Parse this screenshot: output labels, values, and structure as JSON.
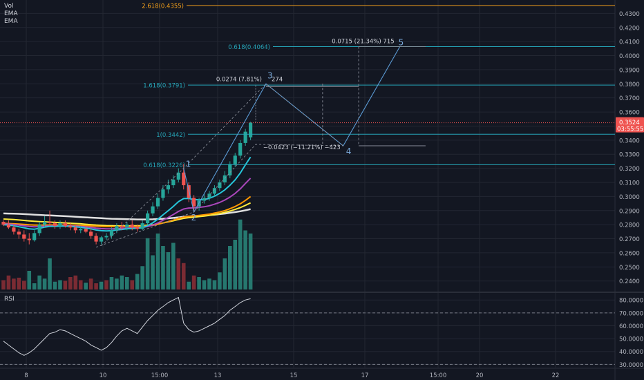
{
  "legend": [
    "Vol",
    "EMA",
    "EMA"
  ],
  "rsi_label": "RSI",
  "colors": {
    "background": "#131722",
    "grid": "#232732",
    "text": "#b2b5be",
    "up": "#26a69a",
    "down": "#ef5350",
    "vol_up": "#26786f",
    "vol_down": "#7b2b33",
    "fib": "#26a6b9",
    "fib_top": "#f7a21b",
    "wave": "#5b9bd5",
    "price_tag": "#ef5350",
    "ema_fast": "#26c6da",
    "ema_mid": "#ab47bc",
    "ema_slow": "#ff9800",
    "ema_yellow": "#ffeb3b",
    "ema_white": "#e0e0e0",
    "rsi": "#d1d4dc"
  },
  "chart_data": {
    "type": "line",
    "price_axis": {
      "ylim": [
        0.2325,
        0.4395
      ],
      "ticks": [
        "0.4300",
        "0.4200",
        "0.4100",
        "0.4000",
        "0.3900",
        "0.3800",
        "0.3700",
        "0.3600",
        "0.3500",
        "0.3400",
        "0.3300",
        "0.3200",
        "0.3100",
        "0.3000",
        "0.2900",
        "0.2800",
        "0.2700",
        "0.2600",
        "0.2500",
        "0.2400"
      ]
    },
    "x_axis": {
      "labels": [
        "8",
        "10",
        "15:00",
        "13",
        "15",
        "17",
        "15:00",
        "20",
        "22"
      ]
    },
    "last_price": "0.3524",
    "countdown": "03:55:55",
    "candles": [
      [
        0.282,
        0.283,
        0.279,
        0.28
      ],
      [
        0.28,
        0.283,
        0.277,
        0.278
      ],
      [
        0.278,
        0.28,
        0.273,
        0.275
      ],
      [
        0.275,
        0.277,
        0.27,
        0.273
      ],
      [
        0.273,
        0.276,
        0.268,
        0.27
      ],
      [
        0.27,
        0.274,
        0.266,
        0.269
      ],
      [
        0.269,
        0.276,
        0.268,
        0.274
      ],
      [
        0.274,
        0.282,
        0.272,
        0.28
      ],
      [
        0.28,
        0.286,
        0.278,
        0.282
      ],
      [
        0.282,
        0.29,
        0.279,
        0.281
      ],
      [
        0.281,
        0.283,
        0.277,
        0.279
      ],
      [
        0.279,
        0.283,
        0.277,
        0.281
      ],
      [
        0.281,
        0.283,
        0.278,
        0.279
      ],
      [
        0.279,
        0.281,
        0.276,
        0.278
      ],
      [
        0.278,
        0.28,
        0.274,
        0.276
      ],
      [
        0.276,
        0.279,
        0.274,
        0.277
      ],
      [
        0.277,
        0.279,
        0.274,
        0.275
      ],
      [
        0.275,
        0.277,
        0.27,
        0.272
      ],
      [
        0.272,
        0.274,
        0.266,
        0.268
      ],
      [
        0.268,
        0.272,
        0.266,
        0.271
      ],
      [
        0.271,
        0.274,
        0.269,
        0.272
      ],
      [
        0.272,
        0.278,
        0.27,
        0.276
      ],
      [
        0.276,
        0.281,
        0.274,
        0.279
      ],
      [
        0.279,
        0.282,
        0.276,
        0.278
      ],
      [
        0.278,
        0.282,
        0.276,
        0.28
      ],
      [
        0.28,
        0.283,
        0.276,
        0.278
      ],
      [
        0.278,
        0.28,
        0.275,
        0.277
      ],
      [
        0.277,
        0.283,
        0.276,
        0.281
      ],
      [
        0.281,
        0.29,
        0.28,
        0.288
      ],
      [
        0.288,
        0.296,
        0.286,
        0.293
      ],
      [
        0.293,
        0.302,
        0.291,
        0.299
      ],
      [
        0.299,
        0.308,
        0.297,
        0.305
      ],
      [
        0.305,
        0.312,
        0.302,
        0.308
      ],
      [
        0.308,
        0.315,
        0.306,
        0.312
      ],
      [
        0.312,
        0.32,
        0.31,
        0.317
      ],
      [
        0.317,
        0.323,
        0.305,
        0.308
      ],
      [
        0.308,
        0.31,
        0.296,
        0.299
      ],
      [
        0.299,
        0.301,
        0.29,
        0.293
      ],
      [
        0.293,
        0.299,
        0.29,
        0.297
      ],
      [
        0.297,
        0.302,
        0.295,
        0.299
      ],
      [
        0.299,
        0.304,
        0.297,
        0.302
      ],
      [
        0.302,
        0.308,
        0.3,
        0.306
      ],
      [
        0.306,
        0.312,
        0.304,
        0.31
      ],
      [
        0.31,
        0.318,
        0.308,
        0.315
      ],
      [
        0.315,
        0.325,
        0.313,
        0.323
      ],
      [
        0.323,
        0.331,
        0.321,
        0.329
      ],
      [
        0.329,
        0.34,
        0.327,
        0.338
      ],
      [
        0.338,
        0.348,
        0.336,
        0.346
      ],
      [
        0.342,
        0.353,
        0.34,
        0.3524
      ]
    ],
    "volume": [
      [
        0.3,
        0
      ],
      [
        0.45,
        0
      ],
      [
        0.35,
        0
      ],
      [
        0.38,
        0
      ],
      [
        0.28,
        0
      ],
      [
        0.6,
        1
      ],
      [
        0.2,
        1
      ],
      [
        0.45,
        1
      ],
      [
        0.35,
        1
      ],
      [
        1.0,
        1
      ],
      [
        0.25,
        1
      ],
      [
        0.3,
        1
      ],
      [
        0.28,
        0
      ],
      [
        0.4,
        0
      ],
      [
        0.45,
        0
      ],
      [
        0.3,
        0
      ],
      [
        0.22,
        1
      ],
      [
        0.35,
        0
      ],
      [
        0.2,
        0
      ],
      [
        0.25,
        1
      ],
      [
        0.3,
        0
      ],
      [
        0.4,
        1
      ],
      [
        0.35,
        1
      ],
      [
        0.45,
        1
      ],
      [
        0.4,
        1
      ],
      [
        0.3,
        0
      ],
      [
        0.5,
        1
      ],
      [
        0.75,
        1
      ],
      [
        1.65,
        1
      ],
      [
        1.1,
        1
      ],
      [
        1.8,
        1
      ],
      [
        1.4,
        1
      ],
      [
        1.2,
        1
      ],
      [
        1.5,
        1
      ],
      [
        1.0,
        0
      ],
      [
        0.85,
        0
      ],
      [
        0.25,
        1
      ],
      [
        0.45,
        0
      ],
      [
        0.4,
        1
      ],
      [
        0.3,
        1
      ],
      [
        0.35,
        1
      ],
      [
        0.3,
        1
      ],
      [
        0.55,
        1
      ],
      [
        1.0,
        1
      ],
      [
        1.4,
        1
      ],
      [
        1.6,
        1
      ],
      [
        2.25,
        1
      ],
      [
        1.9,
        1
      ],
      [
        1.8,
        1
      ]
    ],
    "ema_fast": [
      0.28,
      0.2798,
      0.2792,
      0.2785,
      0.2778,
      0.277,
      0.2768,
      0.2774,
      0.2782,
      0.2788,
      0.2788,
      0.279,
      0.279,
      0.2788,
      0.2784,
      0.2781,
      0.2776,
      0.277,
      0.2762,
      0.2757,
      0.2755,
      0.2757,
      0.2762,
      0.2766,
      0.2771,
      0.2773,
      0.2774,
      0.2779,
      0.2793,
      0.2813,
      0.2839,
      0.287,
      0.2899,
      0.293,
      0.2963,
      0.2985,
      0.2986,
      0.2978,
      0.2976,
      0.2978,
      0.2987,
      0.3002,
      0.3022,
      0.3047,
      0.308,
      0.3118,
      0.3166,
      0.3225,
      0.328
    ],
    "ema_mid": [
      0.2805,
      0.2804,
      0.2801,
      0.2797,
      0.2792,
      0.2787,
      0.2785,
      0.2786,
      0.2789,
      0.2791,
      0.2791,
      0.2792,
      0.2792,
      0.2791,
      0.2789,
      0.2787,
      0.2784,
      0.278,
      0.2775,
      0.2772,
      0.277,
      0.277,
      0.2772,
      0.2774,
      0.2776,
      0.2777,
      0.2778,
      0.278,
      0.2787,
      0.2797,
      0.2812,
      0.2831,
      0.2851,
      0.2872,
      0.2894,
      0.2911,
      0.2918,
      0.292,
      0.2923,
      0.2927,
      0.2934,
      0.2945,
      0.2958,
      0.2975,
      0.2996,
      0.3022,
      0.3054,
      0.3093,
      0.313
    ],
    "ema_slow": [
      0.2808,
      0.2808,
      0.2806,
      0.2804,
      0.2802,
      0.2799,
      0.2797,
      0.2797,
      0.2797,
      0.2798,
      0.2797,
      0.2797,
      0.2797,
      0.2796,
      0.2795,
      0.2794,
      0.2793,
      0.2791,
      0.2789,
      0.2787,
      0.2786,
      0.2786,
      0.2786,
      0.2787,
      0.2787,
      0.2787,
      0.2787,
      0.2788,
      0.2791,
      0.2796,
      0.2803,
      0.2812,
      0.2822,
      0.2832,
      0.2844,
      0.2853,
      0.2859,
      0.2862,
      0.2866,
      0.287,
      0.2875,
      0.2882,
      0.289,
      0.29,
      0.2913,
      0.2929,
      0.2948,
      0.2972,
      0.3
    ],
    "ema_yellow": [
      0.284,
      0.2838,
      0.2836,
      0.2833,
      0.283,
      0.2827,
      0.2824,
      0.2822,
      0.282,
      0.2818,
      0.2816,
      0.2814,
      0.2812,
      0.281,
      0.2808,
      0.2806,
      0.2803,
      0.28,
      0.2797,
      0.2795,
      0.2793,
      0.2792,
      0.2791,
      0.2791,
      0.2791,
      0.2791,
      0.2792,
      0.2793,
      0.2796,
      0.28,
      0.2805,
      0.2812,
      0.282,
      0.2828,
      0.2837,
      0.2845,
      0.285,
      0.2853,
      0.2857,
      0.2861,
      0.2866,
      0.2872,
      0.2879,
      0.2887,
      0.2897,
      0.2908,
      0.2921,
      0.2937,
      0.2955
    ],
    "ema_white": [
      0.288,
      0.2879,
      0.2878,
      0.2877,
      0.2875,
      0.2873,
      0.2871,
      0.2869,
      0.2867,
      0.2866,
      0.2864,
      0.2862,
      0.286,
      0.2858,
      0.2856,
      0.2854,
      0.2852,
      0.285,
      0.2848,
      0.2846,
      0.2844,
      0.2842,
      0.2841,
      0.284,
      0.2839,
      0.2838,
      0.2837,
      0.2837,
      0.2837,
      0.2838,
      0.284,
      0.2842,
      0.2845,
      0.2848,
      0.2852,
      0.2856,
      0.2858,
      0.286,
      0.2862,
      0.2865,
      0.2868,
      0.2871,
      0.2875,
      0.2879,
      0.2884,
      0.2889,
      0.2895,
      0.2902,
      0.291
    ],
    "rsi": {
      "ylim": [
        27.5,
        85.5
      ],
      "ticks": [
        "80.0000",
        "70.0000",
        "60.0000",
        "50.0000",
        "40.0000",
        "30.0000"
      ],
      "guides": [
        70,
        30
      ],
      "values": [
        48,
        45,
        42,
        39,
        37,
        39,
        42,
        46,
        50,
        54,
        55,
        57,
        56,
        54,
        52,
        50,
        48,
        45,
        43,
        41,
        43,
        47,
        52,
        56,
        58,
        56,
        54,
        59,
        64,
        68,
        72,
        75,
        78,
        80,
        82,
        62,
        57,
        55,
        56,
        58,
        60,
        62,
        65,
        68,
        72,
        75,
        78,
        80,
        81
      ]
    },
    "fib_levels": [
      {
        "label": "2.618(0.4355)",
        "price": 0.4355,
        "top": true
      },
      {
        "label": "0.618(0.4064)",
        "price": 0.4064
      },
      {
        "label": "1.618(0.3791)",
        "price": 0.3791
      },
      {
        "label": "1(0.3442)",
        "price": 0.3442
      },
      {
        "label": "0.618(0.3226)",
        "price": 0.3226
      }
    ],
    "waves": [
      {
        "label": "1",
        "at": [
          35,
          0.32
        ]
      },
      {
        "label": "2",
        "at": [
          37,
          0.289
        ]
      },
      {
        "label": "3",
        "at": [
          51,
          0.38
        ]
      },
      {
        "label": "4",
        "at": [
          66,
          0.336
        ]
      },
      {
        "label": "5",
        "at": [
          77,
          0.4064
        ]
      }
    ],
    "annotations": {
      "wave3": "0.0274 (7.81%) 274",
      "wave4": "−0.0423 (−11.21%) −423",
      "wave5": "0.0715 (21.34%) 715"
    }
  }
}
